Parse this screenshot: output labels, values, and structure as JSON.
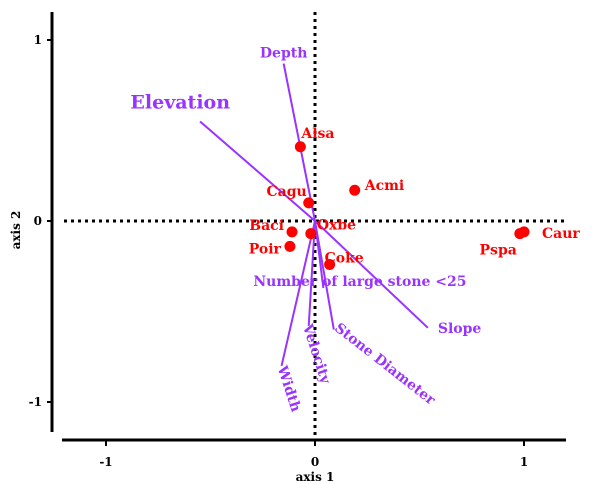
{
  "chart_data": {
    "type": "scatter",
    "title": "",
    "xlabel": "axis 1",
    "ylabel": "axis 2",
    "xlim": [
      -1.22,
      1.22
    ],
    "ylim": [
      -1.2,
      1.2
    ],
    "x_ticks": [
      -1,
      0,
      1
    ],
    "y_ticks": [
      -1,
      0,
      1
    ],
    "grid": false,
    "legend": "none",
    "reference_lines": {
      "x": 0,
      "y": 0,
      "style": "dotted"
    },
    "point_color": "#ff0000",
    "vector_color": "#9933ff",
    "points": [
      {
        "name": "Alsa",
        "x": -0.07,
        "y": 0.41
      },
      {
        "name": "Acmi",
        "x": 0.19,
        "y": 0.17
      },
      {
        "name": "Cagu",
        "x": -0.03,
        "y": 0.1
      },
      {
        "name": "Oxbe",
        "x": -0.02,
        "y": -0.07
      },
      {
        "name": "Baci",
        "x": -0.11,
        "y": -0.06
      },
      {
        "name": "Poir",
        "x": -0.12,
        "y": -0.14
      },
      {
        "name": "Coke",
        "x": 0.07,
        "y": -0.24
      },
      {
        "name": "Caur",
        "x": 1.0,
        "y": -0.06
      },
      {
        "name": "Pspa",
        "x": 0.98,
        "y": -0.07
      }
    ],
    "vectors": [
      {
        "name": "Depth",
        "x": -0.15,
        "y": 0.87
      },
      {
        "name": "Elevation",
        "x": -0.55,
        "y": 0.55
      },
      {
        "name": "Number of large stone <25",
        "x": 0.04,
        "y": -0.37
      },
      {
        "name": "Slope",
        "x": 0.54,
        "y": -0.59
      },
      {
        "name": "Stone Diameter",
        "x": 0.09,
        "y": -0.6
      },
      {
        "name": "Velocity",
        "x": -0.03,
        "y": -0.58
      },
      {
        "name": "Width",
        "x": -0.16,
        "y": -0.8
      }
    ]
  }
}
